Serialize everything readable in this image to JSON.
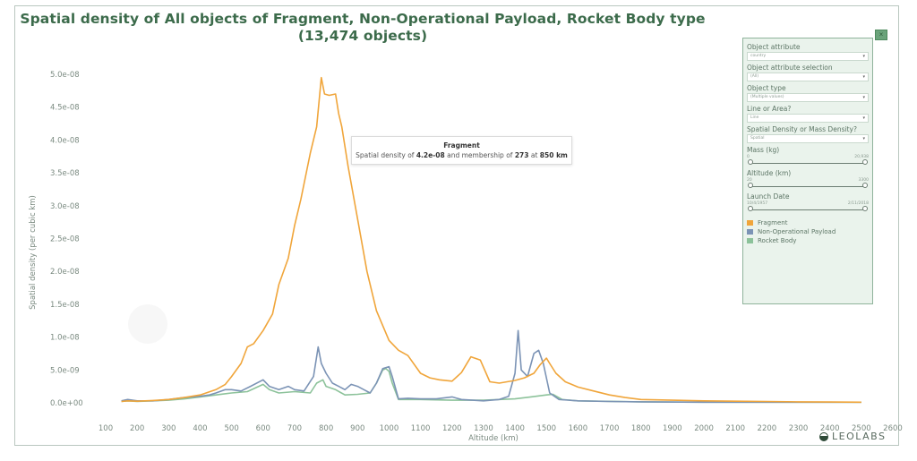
{
  "title": {
    "line1": "Spatial density of All objects of Fragment, Non-Operational Payload, Rocket Body type",
    "line2": "(13,474 objects)"
  },
  "tooltip": {
    "title": "Fragment",
    "prefix": "Spatial density of ",
    "density": "4.2e-08",
    "middle": " and membership of ",
    "membership": "273",
    "at": " at ",
    "altitude": "850 km"
  },
  "panel": {
    "close_label": "×",
    "filters": [
      {
        "label": "Object attribute",
        "value": "country"
      },
      {
        "label": "Object attribute selection",
        "value": "(All)"
      },
      {
        "label": "Object type",
        "value": "(Multiple values)"
      },
      {
        "label": "Line or Area?",
        "value": "Line"
      },
      {
        "label": "Spatial Density or Mass Density?",
        "value": "Spatial"
      }
    ],
    "sliders": [
      {
        "label": "Mass (kg)",
        "min": "0",
        "max": "20,938"
      },
      {
        "label": "Altitude (km)",
        "min": "20",
        "max": "3300"
      },
      {
        "label": "Launch Date",
        "min": "10/4/1957",
        "max": "2/11/2018"
      }
    ],
    "dropdown_arrow": "▾"
  },
  "logo": {
    "text": "LEOLABS"
  },
  "chart_data": {
    "type": "line",
    "title": "Spatial density of All objects of Fragment, Non-Operational Payload, Rocket Body type (13,474 objects)",
    "xlabel": "Altitude (km)",
    "ylabel": "Spatial density (per cubic km)",
    "xlim": [
      100,
      2600
    ],
    "ylim": [
      0,
      5e-08
    ],
    "x_ticks": [
      "100",
      "200",
      "300",
      "400",
      "500",
      "600",
      "700",
      "800",
      "900",
      "1000",
      "1100",
      "1200",
      "1300",
      "1400",
      "1500",
      "1600",
      "1700",
      "1800",
      "1900",
      "2000",
      "2100",
      "2200",
      "2300",
      "2400",
      "2500",
      "2600"
    ],
    "y_ticks": [
      "0.0e+00",
      "5.0e-09",
      "1.0e-08",
      "1.5e-08",
      "2.0e-08",
      "2.5e-08",
      "3.0e-08",
      "3.5e-08",
      "4.0e-08",
      "4.5e-08",
      "5.0e-08"
    ],
    "y_unit_scale": 1e-09,
    "grid": false,
    "legend_position": "right",
    "series": [
      {
        "name": "Fragment",
        "color": "#f0a53a",
        "x": [
          150,
          170,
          200,
          250,
          300,
          350,
          400,
          450,
          480,
          500,
          530,
          550,
          570,
          600,
          630,
          650,
          680,
          700,
          720,
          750,
          770,
          785,
          795,
          810,
          830,
          840,
          850,
          870,
          900,
          930,
          960,
          1000,
          1030,
          1060,
          1100,
          1130,
          1160,
          1200,
          1230,
          1260,
          1290,
          1320,
          1350,
          1400,
          1430,
          1460,
          1480,
          1500,
          1510,
          1530,
          1560,
          1600,
          1650,
          1700,
          1750,
          1800,
          1900,
          2000,
          2100,
          2200,
          2300,
          2400,
          2500
        ],
        "y": [
          0.2,
          0.3,
          0.25,
          0.35,
          0.5,
          0.8,
          1.2,
          2.0,
          2.8,
          4.0,
          6.0,
          8.5,
          9.0,
          11.0,
          13.5,
          18.0,
          22.0,
          27.0,
          31.0,
          38.0,
          42.0,
          49.5,
          47.0,
          46.8,
          47.0,
          44.0,
          42.0,
          36.0,
          28.0,
          20.0,
          14.0,
          9.5,
          8.0,
          7.2,
          4.5,
          3.8,
          3.5,
          3.3,
          4.6,
          7.0,
          6.5,
          3.2,
          3.0,
          3.4,
          3.8,
          4.5,
          5.8,
          6.8,
          6.0,
          4.5,
          3.2,
          2.4,
          1.8,
          1.2,
          0.8,
          0.5,
          0.4,
          0.3,
          0.25,
          0.2,
          0.15,
          0.12,
          0.1
        ]
      },
      {
        "name": "Non-Operational Payload",
        "color": "#7b93b5",
        "x": [
          150,
          170,
          200,
          250,
          300,
          350,
          400,
          430,
          450,
          480,
          500,
          530,
          560,
          600,
          620,
          650,
          680,
          700,
          730,
          760,
          775,
          785,
          800,
          820,
          840,
          860,
          880,
          900,
          920,
          940,
          960,
          980,
          1000,
          1010,
          1030,
          1060,
          1100,
          1150,
          1200,
          1230,
          1300,
          1350,
          1380,
          1400,
          1410,
          1420,
          1440,
          1460,
          1475,
          1490,
          1510,
          1540,
          1600,
          1700,
          1800,
          2000,
          2300,
          2500
        ],
        "y": [
          0.3,
          0.5,
          0.3,
          0.3,
          0.5,
          0.8,
          1.0,
          1.2,
          1.5,
          2.0,
          2.0,
          1.8,
          2.5,
          3.5,
          2.5,
          2.0,
          2.5,
          2.0,
          1.8,
          4.0,
          8.5,
          6.0,
          4.5,
          3.0,
          2.5,
          2.0,
          2.8,
          2.5,
          2.0,
          1.5,
          3.0,
          5.2,
          5.5,
          4.0,
          0.6,
          0.7,
          0.6,
          0.6,
          0.9,
          0.5,
          0.3,
          0.5,
          1.0,
          4.5,
          11.0,
          5.0,
          4.0,
          7.5,
          8.0,
          6.0,
          1.5,
          0.5,
          0.3,
          0.2,
          0.15,
          0.1,
          0.1,
          0.1
        ]
      },
      {
        "name": "Rocket Body",
        "color": "#8cc29a",
        "x": [
          150,
          170,
          200,
          250,
          300,
          350,
          400,
          450,
          500,
          550,
          600,
          620,
          650,
          700,
          750,
          770,
          790,
          800,
          830,
          860,
          900,
          940,
          960,
          980,
          990,
          1000,
          1010,
          1030,
          1100,
          1200,
          1300,
          1400,
          1450,
          1500,
          1520,
          1550,
          1600,
          1800,
          2000,
          2500
        ],
        "y": [
          0.2,
          0.3,
          0.2,
          0.3,
          0.4,
          0.6,
          0.9,
          1.2,
          1.5,
          1.7,
          2.8,
          2.0,
          1.5,
          1.7,
          1.5,
          3.0,
          3.5,
          2.5,
          2.0,
          1.2,
          1.3,
          1.5,
          3.0,
          5.0,
          5.2,
          4.8,
          3.0,
          0.5,
          0.5,
          0.4,
          0.4,
          0.6,
          0.9,
          1.2,
          1.3,
          0.5,
          0.3,
          0.15,
          0.1,
          0.1
        ]
      }
    ]
  }
}
